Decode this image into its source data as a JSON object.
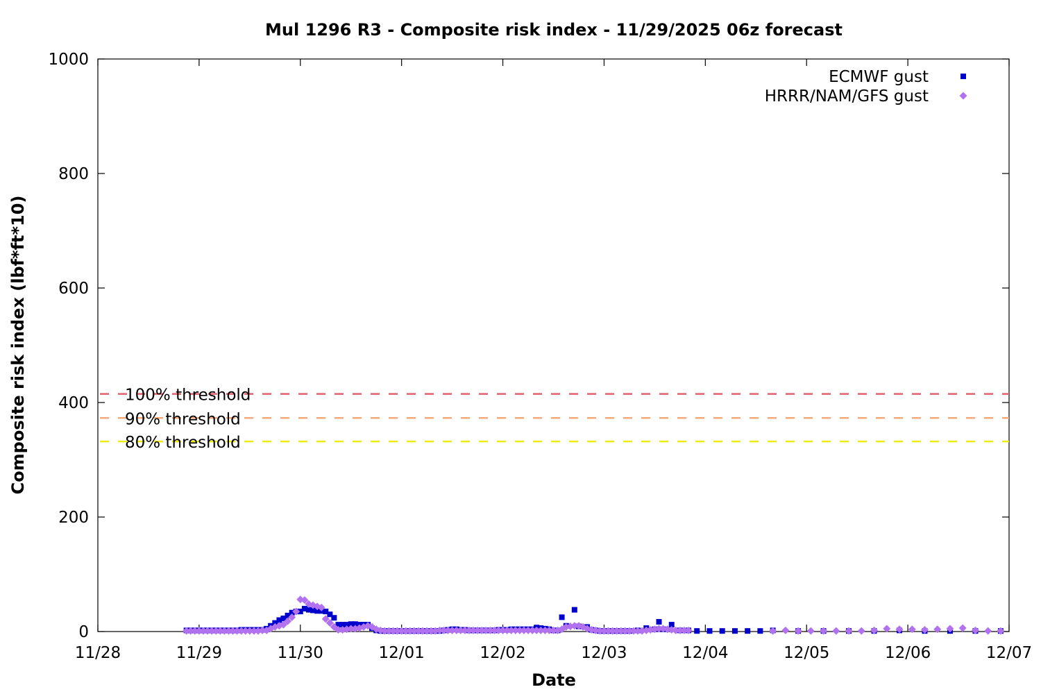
{
  "chart_data": {
    "type": "scatter",
    "title": "Mul 1296 R3 - Composite risk index - 11/29/2025 06z forecast",
    "xlabel": "Date",
    "ylabel": "Composite risk index (lbf*ft*10)",
    "ylim": [
      0,
      1000
    ],
    "xlim": [
      0,
      9
    ],
    "x_tick_labels": [
      "11/28",
      "11/29",
      "11/30",
      "12/01",
      "12/02",
      "12/03",
      "12/04",
      "12/05",
      "12/06",
      "12/07"
    ],
    "y_ticks": [
      0,
      200,
      400,
      600,
      800,
      1000
    ],
    "legend_position": "top-right",
    "grid": false,
    "thresholds": [
      {
        "label": "100% threshold",
        "value": 415,
        "color": "#e0606e"
      },
      {
        "label": "90% threshold",
        "value": 373,
        "color": "#f5a878"
      },
      {
        "label": "80% threshold",
        "value": 332,
        "color": "#ecec10"
      }
    ],
    "series": [
      {
        "name": "ECMWF gust",
        "color": "#0000cc",
        "marker": "square",
        "points": [
          [
            0.875,
            2
          ],
          [
            0.917,
            2
          ],
          [
            0.958,
            2
          ],
          [
            1.0,
            2
          ],
          [
            1.042,
            2
          ],
          [
            1.083,
            2
          ],
          [
            1.125,
            2
          ],
          [
            1.167,
            2
          ],
          [
            1.208,
            2
          ],
          [
            1.25,
            2
          ],
          [
            1.292,
            2
          ],
          [
            1.333,
            2
          ],
          [
            1.375,
            2
          ],
          [
            1.417,
            3
          ],
          [
            1.458,
            3
          ],
          [
            1.5,
            3
          ],
          [
            1.542,
            3
          ],
          [
            1.583,
            3
          ],
          [
            1.625,
            3
          ],
          [
            1.667,
            5
          ],
          [
            1.708,
            10
          ],
          [
            1.75,
            15
          ],
          [
            1.792,
            20
          ],
          [
            1.833,
            23
          ],
          [
            1.875,
            28
          ],
          [
            1.917,
            33
          ],
          [
            1.958,
            35
          ],
          [
            2.0,
            35
          ],
          [
            2.042,
            40
          ],
          [
            2.083,
            38
          ],
          [
            2.125,
            37
          ],
          [
            2.167,
            36
          ],
          [
            2.208,
            36
          ],
          [
            2.25,
            35
          ],
          [
            2.292,
            30
          ],
          [
            2.333,
            24
          ],
          [
            2.375,
            12
          ],
          [
            2.417,
            12
          ],
          [
            2.458,
            12
          ],
          [
            2.5,
            13
          ],
          [
            2.542,
            13
          ],
          [
            2.583,
            12
          ],
          [
            2.625,
            12
          ],
          [
            2.667,
            12
          ],
          [
            2.708,
            6
          ],
          [
            2.75,
            2
          ],
          [
            2.792,
            1
          ],
          [
            2.833,
            1
          ],
          [
            2.875,
            1
          ],
          [
            2.917,
            1
          ],
          [
            2.958,
            1
          ],
          [
            3.0,
            1
          ],
          [
            3.042,
            1
          ],
          [
            3.083,
            1
          ],
          [
            3.125,
            1
          ],
          [
            3.167,
            1
          ],
          [
            3.208,
            1
          ],
          [
            3.25,
            1
          ],
          [
            3.292,
            1
          ],
          [
            3.333,
            1
          ],
          [
            3.375,
            1
          ],
          [
            3.417,
            2
          ],
          [
            3.458,
            3
          ],
          [
            3.5,
            4
          ],
          [
            3.542,
            4
          ],
          [
            3.583,
            3
          ],
          [
            3.625,
            3
          ],
          [
            3.667,
            2
          ],
          [
            3.708,
            2
          ],
          [
            3.75,
            2
          ],
          [
            3.792,
            2
          ],
          [
            3.833,
            2
          ],
          [
            3.875,
            2
          ],
          [
            3.917,
            2
          ],
          [
            3.958,
            3
          ],
          [
            4.0,
            3
          ],
          [
            4.042,
            3
          ],
          [
            4.083,
            4
          ],
          [
            4.125,
            4
          ],
          [
            4.167,
            4
          ],
          [
            4.208,
            4
          ],
          [
            4.25,
            4
          ],
          [
            4.292,
            4
          ],
          [
            4.333,
            7
          ],
          [
            4.375,
            6
          ],
          [
            4.417,
            5
          ],
          [
            4.458,
            4
          ],
          [
            4.5,
            2
          ],
          [
            4.542,
            2
          ],
          [
            4.583,
            25
          ],
          [
            4.625,
            10
          ],
          [
            4.708,
            38
          ],
          [
            4.75,
            9
          ],
          [
            4.833,
            8
          ],
          [
            4.875,
            3
          ],
          [
            4.917,
            2
          ],
          [
            4.958,
            1
          ],
          [
            5.0,
            1
          ],
          [
            5.042,
            1
          ],
          [
            5.083,
            1
          ],
          [
            5.125,
            1
          ],
          [
            5.167,
            1
          ],
          [
            5.208,
            1
          ],
          [
            5.25,
            1
          ],
          [
            5.333,
            2
          ],
          [
            5.417,
            6
          ],
          [
            5.5,
            4
          ],
          [
            5.542,
            17
          ],
          [
            5.583,
            4
          ],
          [
            5.667,
            12
          ],
          [
            5.75,
            2
          ],
          [
            5.833,
            2
          ],
          [
            5.917,
            1
          ],
          [
            6.042,
            1
          ],
          [
            6.167,
            1
          ],
          [
            6.292,
            1
          ],
          [
            6.417,
            1
          ],
          [
            6.542,
            1
          ],
          [
            6.667,
            2
          ],
          [
            6.917,
            1
          ],
          [
            7.167,
            1
          ],
          [
            7.417,
            1
          ],
          [
            7.667,
            1
          ],
          [
            7.917,
            2
          ],
          [
            8.167,
            1
          ],
          [
            8.417,
            1
          ],
          [
            8.667,
            1
          ],
          [
            8.917,
            1
          ]
        ]
      },
      {
        "name": "HRRR/NAM/GFS gust",
        "color": "#b272f0",
        "marker": "diamond",
        "points": [
          [
            0.875,
            1
          ],
          [
            0.917,
            1
          ],
          [
            0.958,
            1
          ],
          [
            1.0,
            1
          ],
          [
            1.042,
            1
          ],
          [
            1.083,
            1
          ],
          [
            1.125,
            1
          ],
          [
            1.167,
            1
          ],
          [
            1.208,
            1
          ],
          [
            1.25,
            1
          ],
          [
            1.292,
            1
          ],
          [
            1.333,
            1
          ],
          [
            1.375,
            1
          ],
          [
            1.417,
            1
          ],
          [
            1.458,
            1
          ],
          [
            1.5,
            1
          ],
          [
            1.542,
            1
          ],
          [
            1.583,
            1
          ],
          [
            1.625,
            2
          ],
          [
            1.667,
            2
          ],
          [
            1.708,
            5
          ],
          [
            1.75,
            8
          ],
          [
            1.792,
            10
          ],
          [
            1.833,
            12
          ],
          [
            1.875,
            18
          ],
          [
            1.917,
            25
          ],
          [
            1.958,
            35
          ],
          [
            2.0,
            56
          ],
          [
            2.042,
            55
          ],
          [
            2.083,
            48
          ],
          [
            2.125,
            46
          ],
          [
            2.167,
            44
          ],
          [
            2.208,
            42
          ],
          [
            2.25,
            22
          ],
          [
            2.292,
            15
          ],
          [
            2.333,
            8
          ],
          [
            2.375,
            3
          ],
          [
            2.417,
            3
          ],
          [
            2.458,
            4
          ],
          [
            2.5,
            5
          ],
          [
            2.542,
            5
          ],
          [
            2.583,
            6
          ],
          [
            2.625,
            8
          ],
          [
            2.667,
            10
          ],
          [
            2.708,
            8
          ],
          [
            2.75,
            4
          ],
          [
            2.792,
            2
          ],
          [
            2.833,
            1
          ],
          [
            2.875,
            1
          ],
          [
            2.917,
            1
          ],
          [
            2.958,
            1
          ],
          [
            3.0,
            1
          ],
          [
            3.042,
            1
          ],
          [
            3.083,
            1
          ],
          [
            3.125,
            1
          ],
          [
            3.167,
            1
          ],
          [
            3.208,
            1
          ],
          [
            3.25,
            1
          ],
          [
            3.292,
            1
          ],
          [
            3.333,
            1
          ],
          [
            3.375,
            2
          ],
          [
            3.417,
            2
          ],
          [
            3.458,
            2
          ],
          [
            3.5,
            2
          ],
          [
            3.542,
            2
          ],
          [
            3.583,
            2
          ],
          [
            3.625,
            2
          ],
          [
            3.667,
            2
          ],
          [
            3.708,
            2
          ],
          [
            3.75,
            2
          ],
          [
            3.792,
            2
          ],
          [
            3.833,
            2
          ],
          [
            3.875,
            2
          ],
          [
            3.917,
            2
          ],
          [
            3.958,
            2
          ],
          [
            4.0,
            2
          ],
          [
            4.042,
            2
          ],
          [
            4.083,
            2
          ],
          [
            4.125,
            2
          ],
          [
            4.167,
            2
          ],
          [
            4.208,
            2
          ],
          [
            4.25,
            2
          ],
          [
            4.292,
            2
          ],
          [
            4.333,
            2
          ],
          [
            4.375,
            2
          ],
          [
            4.417,
            2
          ],
          [
            4.458,
            2
          ],
          [
            4.5,
            2
          ],
          [
            4.542,
            2
          ],
          [
            4.583,
            4
          ],
          [
            4.625,
            8
          ],
          [
            4.667,
            9
          ],
          [
            4.708,
            10
          ],
          [
            4.75,
            10
          ],
          [
            4.792,
            8
          ],
          [
            4.833,
            5
          ],
          [
            4.875,
            3
          ],
          [
            4.917,
            2
          ],
          [
            4.958,
            1
          ],
          [
            5.0,
            1
          ],
          [
            5.042,
            1
          ],
          [
            5.083,
            1
          ],
          [
            5.125,
            1
          ],
          [
            5.167,
            1
          ],
          [
            5.208,
            1
          ],
          [
            5.25,
            1
          ],
          [
            5.292,
            1
          ],
          [
            5.333,
            1
          ],
          [
            5.375,
            1
          ],
          [
            5.417,
            2
          ],
          [
            5.458,
            3
          ],
          [
            5.5,
            4
          ],
          [
            5.542,
            5
          ],
          [
            5.583,
            5
          ],
          [
            5.625,
            4
          ],
          [
            5.667,
            3
          ],
          [
            5.708,
            2
          ],
          [
            5.75,
            2
          ],
          [
            5.792,
            2
          ],
          [
            5.833,
            2
          ],
          [
            6.667,
            1
          ],
          [
            6.792,
            2
          ],
          [
            6.917,
            1
          ],
          [
            7.042,
            1
          ],
          [
            7.167,
            1
          ],
          [
            7.292,
            1
          ],
          [
            7.417,
            1
          ],
          [
            7.542,
            1
          ],
          [
            7.667,
            2
          ],
          [
            7.792,
            5
          ],
          [
            7.917,
            4
          ],
          [
            8.042,
            4
          ],
          [
            8.167,
            3
          ],
          [
            8.292,
            4
          ],
          [
            8.417,
            5
          ],
          [
            8.542,
            6
          ],
          [
            8.667,
            2
          ],
          [
            8.792,
            1
          ],
          [
            8.917,
            1
          ]
        ]
      }
    ]
  }
}
